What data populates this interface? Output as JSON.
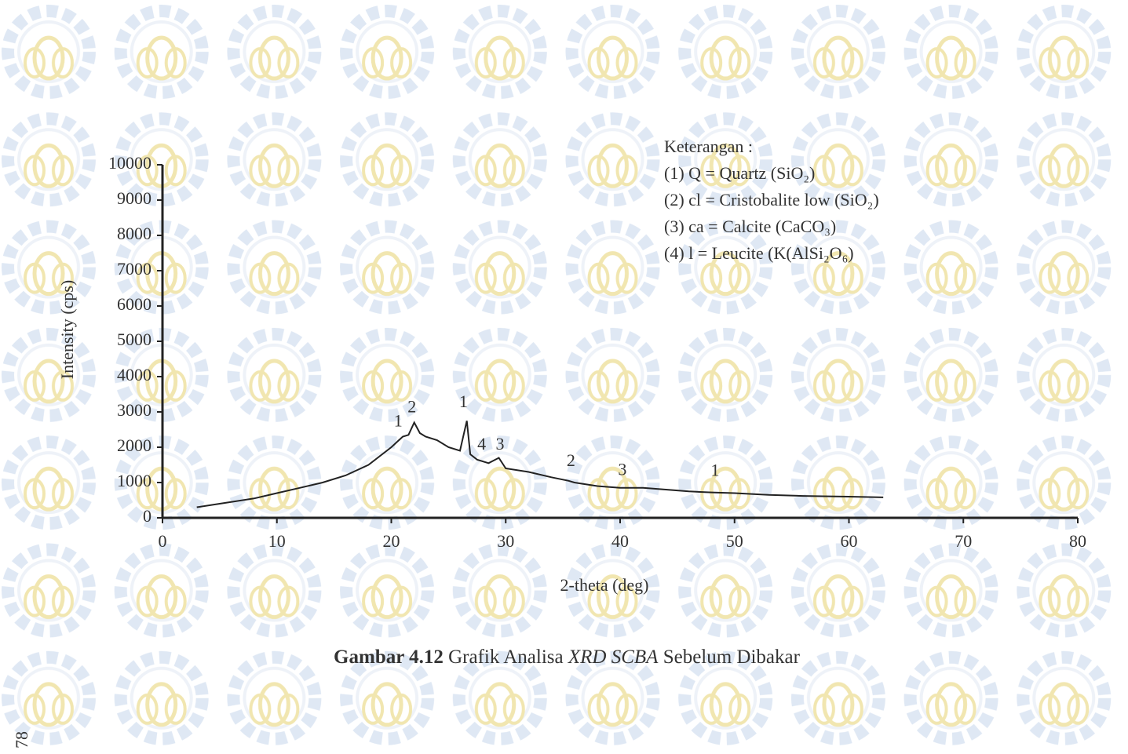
{
  "chart_data": {
    "type": "line",
    "x_label": "2-theta (deg)",
    "y_label": "Intensity (cps)",
    "xlim": [
      0,
      80
    ],
    "ylim": [
      0,
      10000
    ],
    "xticks": [
      0,
      10,
      20,
      30,
      40,
      50,
      60,
      70,
      80
    ],
    "yticks": [
      0,
      1000,
      2000,
      3000,
      4000,
      5000,
      6000,
      7000,
      8000,
      9000,
      10000
    ],
    "grid": false,
    "series": [
      {
        "color": "#222222",
        "x": [
          3,
          5,
          8,
          10,
          12,
          14,
          16,
          18,
          20,
          21,
          21.5,
          22,
          22.5,
          23,
          24,
          25,
          26,
          26.6,
          26.9,
          27.5,
          28.5,
          29.4,
          30,
          32,
          34,
          35.5,
          36,
          38,
          40,
          42,
          44,
          46,
          48,
          50,
          53,
          56,
          60,
          63
        ],
        "values": [
          300,
          400,
          550,
          700,
          850,
          1000,
          1200,
          1500,
          2000,
          2300,
          2350,
          2700,
          2400,
          2300,
          2200,
          2000,
          1900,
          2750,
          1800,
          1650,
          1550,
          1700,
          1400,
          1300,
          1150,
          1050,
          1000,
          900,
          850,
          850,
          800,
          750,
          720,
          700,
          650,
          620,
          600,
          580
        ]
      }
    ],
    "annotations": [
      {
        "text": "1",
        "x": 20.6,
        "y": 2700
      },
      {
        "text": "2",
        "x": 21.8,
        "y": 3100
      },
      {
        "text": "1",
        "x": 26.3,
        "y": 3250
      },
      {
        "text": "4",
        "x": 27.9,
        "y": 2050
      },
      {
        "text": "3",
        "x": 29.5,
        "y": 2050
      },
      {
        "text": "2",
        "x": 35.7,
        "y": 1580
      },
      {
        "text": "3",
        "x": 40.2,
        "y": 1320
      },
      {
        "text": "1",
        "x": 48.3,
        "y": 1300
      }
    ],
    "notes": {
      "title": "Keterangan :",
      "items": [
        "(1) Q = Quartz (SiO₂)",
        "(2) cl = Cristobalite low (SiO₂)",
        "(3) ca = Calcite (CaCO₃)",
        "(4) l = Leucite (K(AlSi₂O₆)"
      ]
    }
  },
  "caption": {
    "number": "Gambar 4.12",
    "before": "Grafik Analisa",
    "emphasis": "XRD SCBA",
    "after": "Sebelum Dibakar"
  },
  "page_number": "78"
}
